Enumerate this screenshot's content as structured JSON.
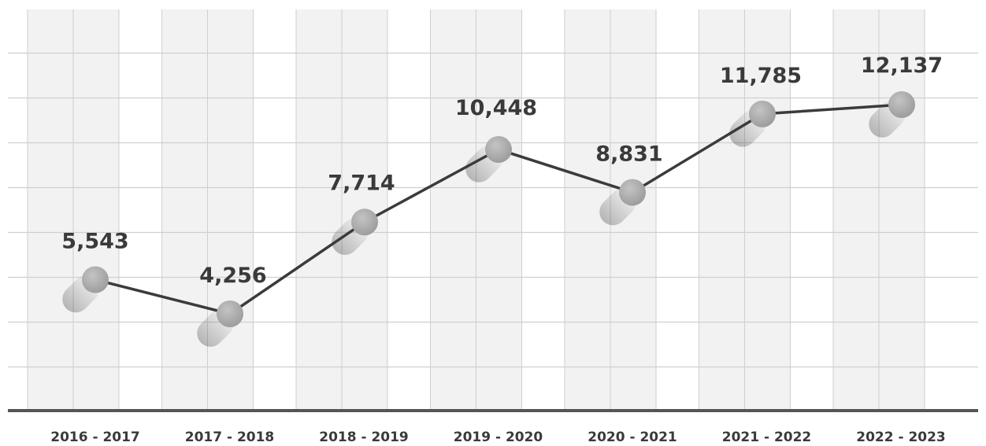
{
  "chart_data": {
    "type": "line",
    "title": "",
    "xlabel": "",
    "ylabel": "",
    "categories": [
      "2016 - 2017",
      "2017 - 2018",
      "2018 - 2019",
      "2019 - 2020",
      "2020 - 2021",
      "2021 - 2022",
      "2022 - 2023"
    ],
    "series": [
      {
        "values": [
          5543,
          4256,
          7714,
          10448,
          8831,
          11785,
          12137
        ],
        "labels": [
          "5,543",
          "4,256",
          "7,714",
          "10,448",
          "8,831",
          "11,785",
          "12,137"
        ]
      }
    ],
    "grid": true,
    "legend": "none",
    "colors": {
      "line": "#3b3b3b",
      "marker": "#a6a6a6",
      "column_band": "#f2f2f2",
      "grid": "#cfcfcf",
      "axis": "#555555",
      "text": "#3a3a3a"
    }
  }
}
